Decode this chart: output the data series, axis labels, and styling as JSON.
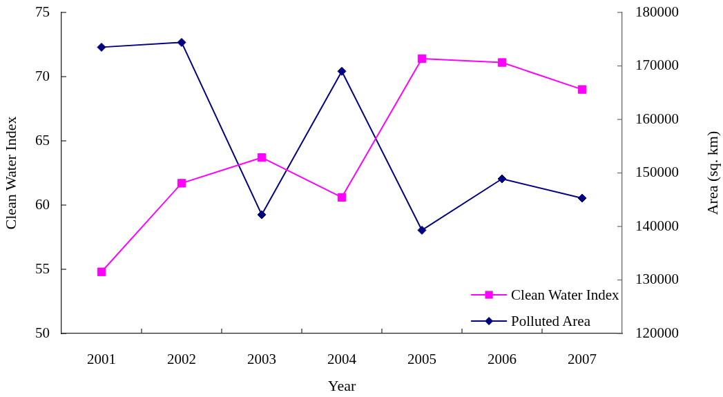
{
  "chart_data": {
    "type": "line",
    "xlabel": "Year",
    "ylabel": "Clean Water Index",
    "y2label": "Area (sq. km)",
    "categories": [
      "2001",
      "2002",
      "2003",
      "2004",
      "2005",
      "2006",
      "2007"
    ],
    "series": [
      {
        "name": "Clean Water Index",
        "color": "#ff00ff",
        "marker": "square",
        "values": [
          54.8,
          61.7,
          63.7,
          60.6,
          71.4,
          71.1,
          69.0
        ]
      },
      {
        "name": "Polluted Area",
        "color": "#000080",
        "marker": "diamond",
        "axis": "y2",
        "values": [
          173500,
          174400,
          142200,
          169000,
          139300,
          148900,
          145300
        ]
      }
    ],
    "ylim": [
      50,
      75
    ],
    "yticks": [
      50,
      55,
      60,
      65,
      70,
      75
    ],
    "y2lim": [
      120000,
      180000
    ],
    "y2ticks": [
      120000,
      130000,
      140000,
      150000,
      160000,
      170000,
      180000
    ],
    "legend": "bottom right"
  }
}
